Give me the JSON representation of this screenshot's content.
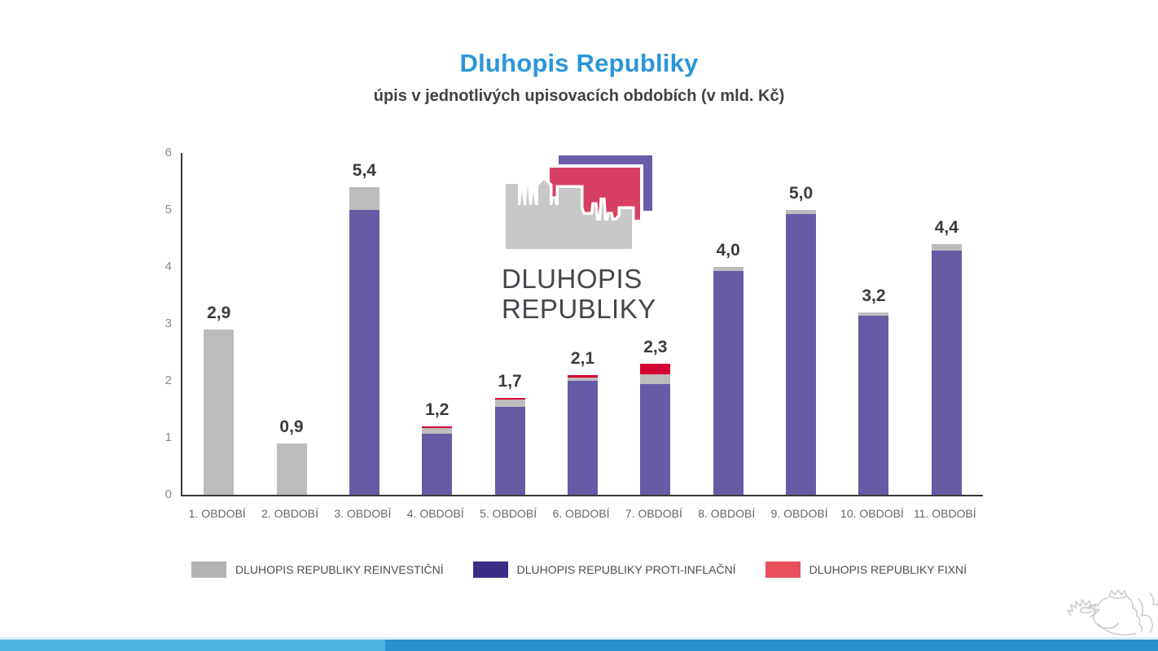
{
  "page": {
    "title": "Dluhopis Republiky",
    "subtitle": "úpis v jednotlivých upisovacích obdobích (v mld. Kč)"
  },
  "logo": {
    "line1": "DLUHOPIS",
    "line2": "REPUBLIKY"
  },
  "colors": {
    "title_blue": "#2b96d9",
    "bar_proti_inflacni": "#675aa4",
    "bar_reinvesticni": "#bcbcbc",
    "bar_fixni": "#d50032",
    "legend_reinvesticni": "#b3b3b3",
    "legend_proti_inflacni": "#3b2d87",
    "legend_fixni": "#e8505b",
    "logo_purple": "#6a5ba6",
    "logo_pink": "#d84063",
    "logo_gray": "#c8c8c8",
    "lion_gray": "#cccccc",
    "footer_strip": "#dceef9",
    "footer_left_blue": "#4db3e3",
    "footer_right_blue": "#2991cc"
  },
  "legend": {
    "items": [
      {
        "label": "DLUHOPIS REPUBLIKY REINVESTIČNÍ",
        "color": "#b3b3b3"
      },
      {
        "label": "DLUHOPIS REPUBLIKY PROTI-INFLAČNÍ",
        "color": "#3b2d87"
      },
      {
        "label": "DLUHOPIS REPUBLIKY FIXNÍ",
        "color": "#e8505b"
      }
    ]
  },
  "chart_data": {
    "type": "bar",
    "stacked": true,
    "title": "Dluhopis Republiky",
    "subtitle": "úpis v jednotlivých upisovacích obdobích (v mld. Kč)",
    "categories": [
      "1. OBDOBÍ",
      "2. OBDOBÍ",
      "3. OBDOBÍ",
      "4. OBDOBÍ",
      "5. OBDOBÍ",
      "6. OBDOBÍ",
      "7. OBDOBÍ",
      "8. OBDOBÍ",
      "9. OBDOBÍ",
      "10. OBDOBÍ",
      "11. OBDOBÍ"
    ],
    "series": [
      {
        "name": "DLUHOPIS REPUBLIKY PROTI-INFLAČNÍ",
        "color": "#675aa4",
        "values": [
          0,
          0,
          5.0,
          1.07,
          1.55,
          2.0,
          1.95,
          3.93,
          4.93,
          3.15,
          4.28
        ]
      },
      {
        "name": "DLUHOPIS REPUBLIKY REINVESTIČNÍ",
        "color": "#bcbcbc",
        "values": [
          2.9,
          0.9,
          0.4,
          0.1,
          0.12,
          0.06,
          0.17,
          0.07,
          0.07,
          0.05,
          0.12
        ]
      },
      {
        "name": "DLUHOPIS REPUBLIKY FIXNÍ",
        "color": "#d50032",
        "values": [
          0,
          0,
          0,
          0.03,
          0.03,
          0.04,
          0.18,
          0,
          0,
          0,
          0
        ]
      }
    ],
    "totals_labels": [
      "2,9",
      "0,9",
      "5,4",
      "1,2",
      "1,7",
      "2,1",
      "2,3",
      "4,0",
      "5,0",
      "3,2",
      "4,4"
    ],
    "y_ticks": [
      0,
      1,
      2,
      3,
      4,
      5,
      6
    ],
    "ylim": [
      0,
      6
    ],
    "grid": false,
    "legend_position": "bottom"
  }
}
